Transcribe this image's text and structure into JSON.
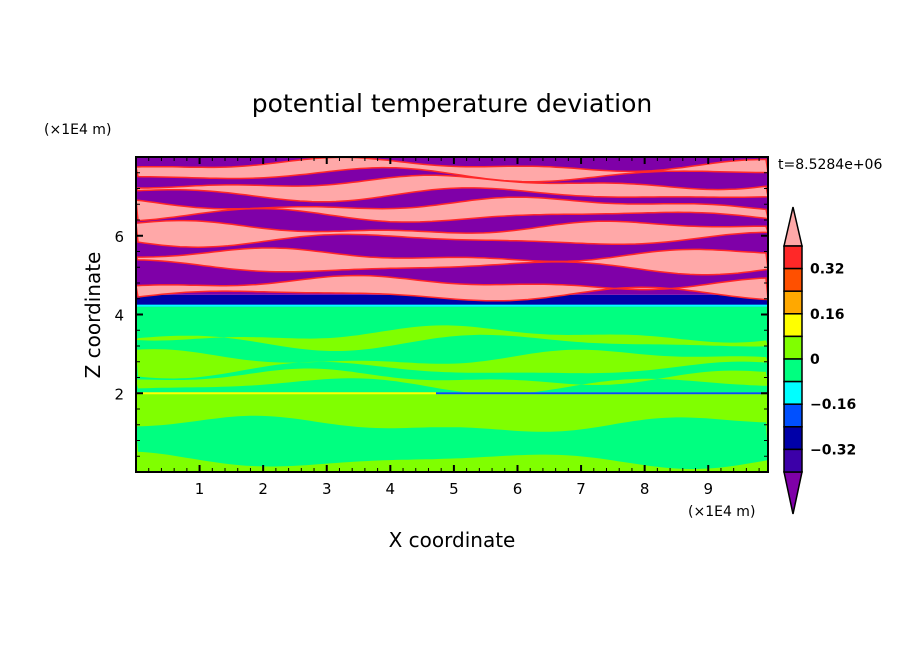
{
  "chart_data": {
    "type": "heatmap",
    "title": "potential temperature deviation",
    "xlabel": "X coordinate",
    "ylabel": "Z coordinate",
    "x_unit": "(×1E4 m)",
    "y_unit": "(×1E4 m)",
    "time_label": "t=8.5284e+06",
    "xlim": [
      0,
      9.94
    ],
    "ylim": [
      0,
      8
    ],
    "xticks": [
      1,
      2,
      3,
      4,
      5,
      6,
      7,
      8,
      9
    ],
    "yticks": [
      2,
      4,
      6
    ],
    "colorbar": {
      "levels": [
        -0.4,
        -0.32,
        -0.24,
        -0.16,
        -0.08,
        0,
        0.08,
        0.16,
        0.24,
        0.32,
        0.4
      ],
      "tick_labels": [
        "0.32",
        "0.16",
        "0",
        "−0.16",
        "−0.32"
      ],
      "tick_values": [
        0.32,
        0.16,
        0,
        -0.16,
        -0.32
      ],
      "colors_top_to_bottom": [
        "#ffa8a8",
        "#ff2828",
        "#ff5000",
        "#ffa800",
        "#ffff00",
        "#80ff00",
        "#00ff80",
        "#00ffff",
        "#0050ff",
        "#0000a8",
        "#3c00a8",
        "#7f00a8"
      ],
      "extend": "both"
    },
    "regions": [
      {
        "z_range": [
          0,
          2
        ],
        "description_value": "0 to 0.08",
        "color": "#80ff00"
      },
      {
        "z_range": [
          2,
          4.2
        ],
        "description_value": "-0.08 to 0",
        "color": "#00ff80"
      },
      {
        "z_range": [
          4.2,
          4.5
        ],
        "description_value": "-0.32 to -0.4",
        "color": "#0000a8"
      },
      {
        "z_range": [
          4.5,
          8
        ],
        "description_value": "alternating >0.4 and <-0.4",
        "colors": [
          "#ffa8a8",
          "#7f00a8"
        ]
      }
    ]
  }
}
